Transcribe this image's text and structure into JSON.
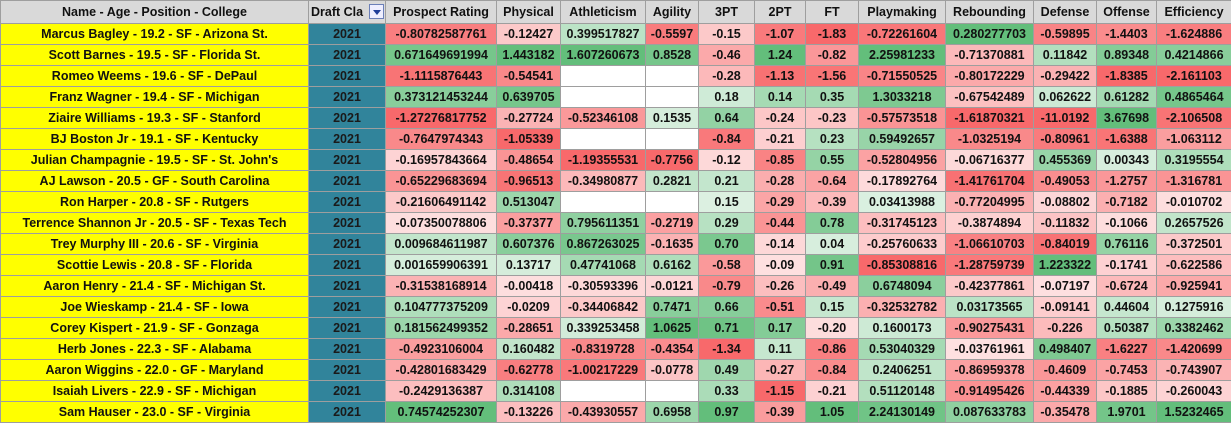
{
  "table": {
    "columns": [
      "Name - Age - Position - College",
      "Draft Cla",
      "Prospect Rating",
      "Physical",
      "Athleticism",
      "Agility",
      "3PT",
      "2PT",
      "FT",
      "Playmaking",
      "Rebounding",
      "Defense",
      "Offense",
      "Efficiency"
    ],
    "rows": [
      [
        "Marcus Bagley - 19.2 - SF - Arizona St.",
        "2021",
        "-0.80782587761",
        "-0.12427",
        "0.399517827",
        "-0.5597",
        "-0.15",
        "-1.07",
        "-1.83",
        "-0.72261604",
        "0.280277703",
        "-0.59895",
        "-1.4403",
        "-1.624886"
      ],
      [
        "Scott Barnes - 19.5 - SF - Florida St.",
        "2021",
        "0.671649691994",
        "1.443182",
        "1.607260673",
        "0.8528",
        "-0.46",
        "1.24",
        "-0.82",
        "2.25981233",
        "-0.71370881",
        "0.11842",
        "0.89348",
        "0.4214866"
      ],
      [
        "Romeo Weems - 19.6 - SF - DePaul",
        "2021",
        "-1.1115876443",
        "-0.54541",
        null,
        null,
        "-0.28",
        "-1.13",
        "-1.56",
        "-0.71550525",
        "-0.80172229",
        "-0.29422",
        "-1.8385",
        "-2.161103"
      ],
      [
        "Franz Wagner - 19.4 - SF - Michigan",
        "2021",
        "0.373121453244",
        "0.639705",
        null,
        null,
        "0.18",
        "0.14",
        "0.35",
        "1.3033218",
        "-0.67542489",
        "0.062622",
        "0.61282",
        "0.4865464"
      ],
      [
        "Ziaire Williams - 19.3 - SF - Stanford",
        "2021",
        "-1.27276817752",
        "-0.27724",
        "-0.52346108",
        "0.1535",
        "0.64",
        "-0.24",
        "-0.23",
        "-0.57573518",
        "-1.61870321",
        "-11.0192",
        "3.67698",
        "-2.106508"
      ],
      [
        "BJ Boston Jr - 19.1 - SF - Kentucky",
        "2021",
        "-0.7647974343",
        "-1.05339",
        null,
        null,
        "-0.84",
        "-0.21",
        "0.23",
        "0.59492657",
        "-1.0325194",
        "-0.80961",
        "-1.6388",
        "-1.063112"
      ],
      [
        "Julian Champagnie - 19.5 - SF - St. John's",
        "2021",
        "-0.16957843664",
        "-0.48654",
        "-1.19355531",
        "-0.7756",
        "-0.12",
        "-0.85",
        "0.55",
        "-0.52804956",
        "-0.06716377",
        "0.455369",
        "0.00343",
        "0.3195554"
      ],
      [
        "AJ Lawson - 20.5 - GF - South Carolina",
        "2021",
        "-0.65229683694",
        "-0.96513",
        "-0.34980877",
        "0.2821",
        "0.21",
        "-0.28",
        "-0.64",
        "-0.17892764",
        "-1.41761704",
        "-0.49053",
        "-1.2757",
        "-1.316781"
      ],
      [
        "Ron Harper - 20.8 - SF - Rutgers",
        "2021",
        "-0.21606491142",
        "0.513047",
        null,
        null,
        "0.15",
        "-0.29",
        "-0.39",
        "0.03413988",
        "-0.77204995",
        "-0.08802",
        "-0.7182",
        "-0.010702"
      ],
      [
        "Terrence Shannon Jr - 20.5 - SF - Texas Tech",
        "2021",
        "-0.07350078806",
        "-0.37377",
        "0.795611351",
        "-0.2719",
        "0.29",
        "-0.44",
        "0.78",
        "-0.31745123",
        "-0.3874894",
        "-0.11832",
        "-0.1066",
        "0.2657526"
      ],
      [
        "Trey Murphy III - 20.6 - SF - Virginia",
        "2021",
        "0.009684611987",
        "0.607376",
        "0.867263025",
        "-0.1635",
        "0.70",
        "-0.14",
        "0.04",
        "-0.25760633",
        "-1.06610703",
        "-0.84019",
        "0.76116",
        "-0.372501"
      ],
      [
        "Scottie Lewis - 20.8 - SF - Florida",
        "2021",
        "0.001659906391",
        "0.13717",
        "0.47741068",
        "0.6162",
        "-0.58",
        "-0.09",
        "0.91",
        "-0.85308816",
        "-1.28759739",
        "1.223322",
        "-0.1741",
        "-0.622586"
      ],
      [
        "Aaron Henry - 21.4 - SF - Michigan St.",
        "2021",
        "-0.31538168914",
        "-0.00418",
        "-0.30593396",
        "-0.0121",
        "-0.79",
        "-0.26",
        "-0.49",
        "0.6748094",
        "-0.42377861",
        "-0.07197",
        "-0.6724",
        "-0.925941"
      ],
      [
        "Joe Wieskamp - 21.4 - SF - Iowa",
        "2021",
        "0.104777375209",
        "-0.0209",
        "-0.34406842",
        "0.7471",
        "0.66",
        "-0.51",
        "0.15",
        "-0.32532782",
        "0.03173565",
        "-0.09141",
        "0.44604",
        "0.1275916"
      ],
      [
        "Corey Kispert - 21.9 - SF - Gonzaga",
        "2021",
        "0.181562499352",
        "-0.28651",
        "0.339253458",
        "1.0625",
        "0.71",
        "0.17",
        "-0.20",
        "0.1600173",
        "-0.90275431",
        "-0.226",
        "0.50387",
        "0.3382462"
      ],
      [
        "Herb Jones - 22.3 - SF - Alabama",
        "2021",
        "-0.4923106004",
        "0.160482",
        "-0.8319728",
        "-0.4354",
        "-1.34",
        "0.11",
        "-0.86",
        "0.53040329",
        "-0.03761961",
        "0.498407",
        "-1.6227",
        "-1.420699"
      ],
      [
        "Aaron Wiggins - 22.0 - GF - Maryland",
        "2021",
        "-0.42801683429",
        "-0.62778",
        "-1.00217229",
        "-0.0778",
        "0.49",
        "-0.27",
        "-0.84",
        "0.2406251",
        "-0.86959378",
        "-0.4609",
        "-0.7453",
        "-0.743907"
      ],
      [
        "Isaiah Livers - 22.9 - SF - Michigan",
        "2021",
        "-0.2429136387",
        "0.314108",
        null,
        null,
        "0.33",
        "-1.15",
        "-0.21",
        "0.51120148",
        "-0.91495426",
        "-0.44339",
        "-0.1885",
        "-0.260043"
      ],
      [
        "Sam Hauser - 23.0 - SF - Virginia",
        "2021",
        "0.74574252307",
        "-0.13226",
        "-0.43930557",
        "0.6958",
        "0.97",
        "-0.39",
        "1.05",
        "2.24130149",
        "0.087633783",
        "-0.35478",
        "1.9701",
        "1.5232465"
      ]
    ]
  }
}
